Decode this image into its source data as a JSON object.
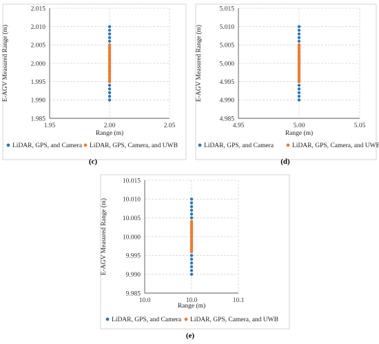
{
  "colors": {
    "series1": "#2e75b6",
    "series2": "#ed7d31"
  },
  "chart_data": [
    {
      "type": "scatter",
      "panel_label": "(c)",
      "xlabel": "Range (m)",
      "ylabel": "E-AGV Measured Range  (m)",
      "xlim": [
        1.95,
        2.05
      ],
      "ylim": [
        1.985,
        2.015
      ],
      "xticks": [
        "1.95",
        "2.00",
        "2.05"
      ],
      "yticks": [
        "1.985",
        "1.990",
        "1.995",
        "2.000",
        "2.005",
        "2.010",
        "2.015"
      ],
      "grid": true,
      "legend": "bottom",
      "series": [
        {
          "name": "LiDAR, GPS, and Camera",
          "x": [
            2.0,
            2.0,
            2.0,
            2.0,
            2.0,
            2.0,
            2.0,
            2.0,
            2.0,
            2.0,
            2.0,
            2.0,
            2.0,
            2.0,
            2.0,
            2.0,
            2.0,
            2.0,
            2.0,
            2.0,
            2.0
          ],
          "y": [
            1.99,
            1.991,
            1.992,
            1.993,
            1.994,
            1.995,
            1.996,
            1.997,
            1.998,
            1.999,
            2.0,
            2.001,
            2.002,
            2.003,
            2.004,
            2.005,
            2.006,
            2.007,
            2.008,
            2.009,
            2.01
          ]
        },
        {
          "name": "LiDAR, GPS, Camera, and UWB",
          "x": [
            2.0,
            2.0,
            2.0,
            2.0,
            2.0,
            2.0,
            2.0,
            2.0,
            2.0,
            2.0,
            2.0,
            2.0,
            2.0,
            2.0,
            2.0,
            2.0,
            2.0,
            2.0,
            2.0,
            2.0,
            2.0,
            2.0
          ],
          "y": [
            1.995,
            1.9955,
            1.996,
            1.9965,
            1.997,
            1.9975,
            1.998,
            1.9985,
            1.999,
            1.9995,
            2.0,
            2.0005,
            2.001,
            2.0015,
            2.002,
            2.0025,
            2.003,
            2.0035,
            2.004,
            2.0045,
            2.005,
            1.9978
          ]
        }
      ]
    },
    {
      "type": "scatter",
      "panel_label": "(d)",
      "xlabel": "Range (m)",
      "ylabel": "E-AGV Measured Range  (m)",
      "xlim": [
        4.95,
        5.05
      ],
      "ylim": [
        4.985,
        5.015
      ],
      "xticks": [
        "4.95",
        "5.00",
        "5.05"
      ],
      "yticks": [
        "4.985",
        "4.990",
        "4.995",
        "5.000",
        "5.005",
        "5.010",
        "5.015"
      ],
      "grid": true,
      "legend": "bottom",
      "series": [
        {
          "name": "LiDAR, GPS, and Camera",
          "x": [
            5.0,
            5.0,
            5.0,
            5.0,
            5.0,
            5.0,
            5.0,
            5.0,
            5.0,
            5.0,
            5.0,
            5.0,
            5.0,
            5.0,
            5.0,
            5.0,
            5.0,
            5.0,
            5.0,
            5.0,
            5.0
          ],
          "y": [
            4.99,
            4.991,
            4.992,
            4.993,
            4.994,
            4.995,
            4.996,
            4.997,
            4.998,
            4.999,
            5.0,
            5.001,
            5.002,
            5.003,
            5.004,
            5.005,
            5.006,
            5.007,
            5.008,
            5.009,
            5.01
          ]
        },
        {
          "name": "LiDAR, GPS, Camera, and UWB",
          "x": [
            5.0,
            5.0,
            5.0,
            5.0,
            5.0,
            5.0,
            5.0,
            5.0,
            5.0,
            5.0,
            5.0,
            5.0,
            5.0,
            5.0,
            5.0,
            5.0,
            5.0,
            5.0,
            5.0,
            5.0,
            5.0
          ],
          "y": [
            4.995,
            4.9955,
            4.996,
            4.9965,
            4.997,
            4.9975,
            4.998,
            4.9985,
            4.999,
            4.9995,
            5.0,
            5.0005,
            5.001,
            5.0015,
            5.002,
            5.0025,
            5.003,
            5.0035,
            5.004,
            5.0045,
            5.005
          ]
        }
      ]
    },
    {
      "type": "scatter",
      "panel_label": "(e)",
      "xlabel": "Range (m)",
      "ylabel": "E-AGV Measured Range  (m)",
      "xlim": [
        9.9,
        10.1
      ],
      "ylim": [
        9.985,
        10.015
      ],
      "xticks": [
        "10.0",
        "10.0",
        "10.1"
      ],
      "yticks": [
        "9.985",
        "9.990",
        "9.995",
        "10.000",
        "10.005",
        "10.010",
        "10.015"
      ],
      "grid": true,
      "legend": "bottom",
      "series": [
        {
          "name": "LiDAR, GPS, and Camera",
          "x": [
            10.0,
            10.0,
            10.0,
            10.0,
            10.0,
            10.0,
            10.0,
            10.0,
            10.0,
            10.0,
            10.0,
            10.0,
            10.0,
            10.0,
            10.0,
            10.0,
            10.0,
            10.0,
            10.0,
            10.0,
            10.0
          ],
          "y": [
            9.99,
            9.991,
            9.992,
            9.993,
            9.994,
            9.995,
            9.996,
            9.997,
            9.998,
            9.999,
            10.0,
            10.001,
            10.002,
            10.003,
            10.004,
            10.005,
            10.006,
            10.007,
            10.008,
            10.009,
            10.01
          ]
        },
        {
          "name": "LiDAR, GPS, Camera, and UWB",
          "x": [
            10.0,
            10.0,
            10.0,
            10.0,
            10.0,
            10.0,
            10.0,
            10.0,
            10.0,
            10.0,
            10.0,
            10.0,
            10.0,
            10.0,
            10.0,
            10.0,
            10.0,
            10.0,
            10.0,
            10.0,
            10.0
          ],
          "y": [
            9.996,
            9.9965,
            9.997,
            9.9975,
            9.998,
            9.9985,
            9.999,
            9.9995,
            10.0,
            10.0005,
            10.001,
            10.0015,
            10.002,
            10.0025,
            10.003,
            10.0035,
            10.004,
            9.9978,
            10.0012,
            10.0022,
            10.0008
          ]
        }
      ]
    }
  ]
}
